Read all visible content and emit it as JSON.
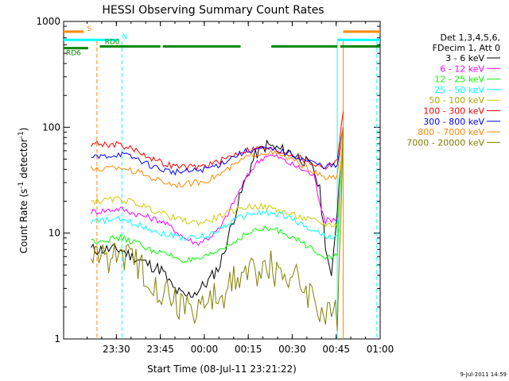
{
  "chart_data": {
    "type": "line",
    "title": "HESSI Observing Summary Count Rates",
    "xlabel": "Start Time (08-Jul-11 23:21:22)",
    "ylabel": "Count Rate (s⁻¹ detector⁻¹)",
    "ylabel_main": "Count Rate (s",
    "ylabel_sup1": "-1",
    "ylabel_mid": " detector",
    "ylabel_sup2": "-1",
    "ylabel_end": ")",
    "yscale": "log",
    "ylim": [
      1,
      1000
    ],
    "xlim_minutes": [
      -9.37,
      98.63
    ],
    "x_ticks": [
      {
        "m": 8.63,
        "label": "23:30"
      },
      {
        "m": 23.63,
        "label": "23:45"
      },
      {
        "m": 38.63,
        "label": "00:00"
      },
      {
        "m": 53.63,
        "label": "00:15"
      },
      {
        "m": 68.63,
        "label": "00:30"
      },
      {
        "m": 83.63,
        "label": "00:45"
      },
      {
        "m": 98.63,
        "label": "01:00"
      }
    ],
    "y_ticks": [
      {
        "v": 1,
        "label": "1"
      },
      {
        "v": 10,
        "label": "10"
      },
      {
        "v": 100,
        "label": "100"
      },
      {
        "v": 1000,
        "label": "1000"
      }
    ],
    "legend": {
      "header": [
        "Det 1,3,4,5,6,",
        "FDecim 1, Att 0"
      ],
      "placement": "right"
    },
    "series": [
      {
        "name": "3 - 6 keV",
        "color": "#000000",
        "x": [
          0,
          2,
          10,
          14,
          20,
          24,
          28,
          32,
          36,
          40,
          44,
          48,
          52,
          56,
          60,
          64,
          68,
          72,
          76,
          78,
          80,
          82,
          86
        ],
        "values": [
          7,
          7,
          7,
          6,
          5,
          4.5,
          3,
          2.5,
          2.8,
          3.5,
          5,
          12,
          28,
          55,
          68,
          62,
          58,
          50,
          40,
          25,
          8,
          3.5,
          90
        ]
      },
      {
        "name": "6 - 12 keV",
        "color": "#ff00ff",
        "x": [
          0,
          2,
          10,
          16,
          20,
          24,
          28,
          32,
          36,
          40,
          44,
          48,
          52,
          56,
          60,
          64,
          68,
          72,
          76,
          78,
          80,
          84,
          86
        ],
        "values": [
          16,
          16,
          17,
          15,
          14,
          13,
          11,
          9,
          8,
          9,
          11,
          18,
          30,
          45,
          55,
          52,
          45,
          40,
          35,
          20,
          13,
          14,
          95
        ]
      },
      {
        "name": "12 - 25 keV",
        "color": "#00ff00",
        "x": [
          0,
          2,
          10,
          16,
          20,
          24,
          28,
          32,
          36,
          40,
          44,
          48,
          52,
          56,
          60,
          64,
          68,
          72,
          76,
          78,
          80,
          84,
          86
        ],
        "values": [
          8.5,
          8.5,
          9,
          8,
          7,
          6.5,
          6,
          5.5,
          5.5,
          6,
          7,
          8,
          9.5,
          10.5,
          11,
          10.5,
          9.5,
          8,
          7,
          6.5,
          6,
          6,
          100
        ]
      },
      {
        "name": "25 - 50 keV",
        "color": "#00ffff",
        "x": [
          0,
          2,
          10,
          16,
          20,
          24,
          28,
          32,
          36,
          40,
          44,
          48,
          52,
          56,
          60,
          64,
          68,
          72,
          76,
          78,
          80,
          84,
          86
        ],
        "values": [
          13,
          13,
          13.5,
          12,
          11,
          10,
          9.5,
          9,
          9,
          9.5,
          11,
          13,
          14.5,
          15.5,
          15.5,
          15,
          14,
          12,
          10.5,
          10,
          9.5,
          9,
          100
        ]
      },
      {
        "name": "50 - 100 keV",
        "color": "#cccc00",
        "x": [
          0,
          2,
          10,
          16,
          20,
          24,
          28,
          32,
          36,
          40,
          44,
          48,
          52,
          56,
          60,
          64,
          68,
          72,
          76,
          78,
          80,
          84,
          86
        ],
        "values": [
          20,
          20,
          21,
          19,
          17,
          15.5,
          14,
          13,
          12.5,
          13,
          14.5,
          16,
          17.5,
          18,
          17.5,
          16.5,
          15,
          14,
          13,
          12.5,
          12,
          12,
          100
        ]
      },
      {
        "name": "100 - 300 keV",
        "color": "#ff0000",
        "x": [
          0,
          2,
          10,
          16,
          20,
          24,
          28,
          32,
          36,
          40,
          44,
          48,
          52,
          56,
          60,
          64,
          68,
          72,
          76,
          78,
          80,
          84,
          86
        ],
        "values": [
          70,
          70,
          68,
          60,
          52,
          46,
          43,
          42,
          42,
          44,
          48,
          54,
          60,
          63,
          63,
          60,
          56,
          50,
          45,
          43,
          42,
          50,
          140
        ]
      },
      {
        "name": "300 - 800 keV",
        "color": "#0000ff",
        "x": [
          0,
          2,
          10,
          16,
          20,
          24,
          28,
          32,
          36,
          40,
          44,
          48,
          52,
          56,
          60,
          64,
          68,
          72,
          76,
          78,
          80,
          84,
          86
        ],
        "values": [
          52,
          52,
          56,
          50,
          44,
          40,
          38,
          38,
          39,
          41,
          45,
          52,
          58,
          62,
          62,
          60,
          56,
          50,
          46,
          44,
          43,
          43,
          100
        ]
      },
      {
        "name": "800 - 7000 keV",
        "color": "#ff8800",
        "x": [
          0,
          2,
          10,
          16,
          20,
          24,
          28,
          32,
          36,
          40,
          44,
          48,
          52,
          56,
          60,
          64,
          68,
          72,
          76,
          78,
          80,
          84,
          86
        ],
        "values": [
          40,
          40,
          42,
          38,
          34,
          31,
          29,
          29,
          30,
          32,
          36,
          42,
          50,
          56,
          58,
          55,
          50,
          44,
          38,
          35,
          33,
          34,
          100
        ]
      },
      {
        "name": "7000 - 20000 keV",
        "color": "#808000",
        "x": [
          0,
          2,
          10,
          16,
          20,
          24,
          28,
          32,
          36,
          40,
          44,
          48,
          52,
          56,
          60,
          64,
          68,
          72,
          76,
          78,
          80,
          84,
          86
        ],
        "values": [
          6,
          6,
          6.5,
          5,
          4,
          3,
          2.5,
          2,
          2,
          2.2,
          2.6,
          3.2,
          4,
          4.6,
          4.8,
          4.5,
          4,
          3.3,
          2.6,
          2,
          1.6,
          1.6,
          100
        ]
      }
    ],
    "event_lines": [
      {
        "m": 2.0,
        "color": "#ff8800"
      },
      {
        "m": 10.5,
        "color": "#00ffff"
      },
      {
        "m": 84.0,
        "color": "#00ffff"
      },
      {
        "m": 86.0,
        "color": "#ff8800"
      },
      {
        "m": 97.5,
        "color": "#00ffff"
      }
    ],
    "bars": [
      {
        "label": "S",
        "color": "#ff8800",
        "y": 800,
        "segments": [
          [
            -9.37,
            -2.5
          ],
          [
            86,
            98.63
          ]
        ]
      },
      {
        "label": "N",
        "color": "#00ffff",
        "y": 670,
        "segments": [
          [
            -9.37,
            9.5
          ],
          [
            84,
            98.63
          ]
        ]
      },
      {
        "label": "RD0",
        "color": "#008800",
        "y": 580,
        "segments": [
          [
            3,
            23.63
          ],
          [
            24.5,
            51
          ],
          [
            61.5,
            84
          ],
          [
            85,
            98.63
          ]
        ]
      },
      {
        "label": "RD6",
        "color": "#008800",
        "y": 560,
        "segments": [
          [
            -9.37,
            -1
          ]
        ]
      }
    ],
    "timestamp": "9-Jul-2011 14:59"
  }
}
